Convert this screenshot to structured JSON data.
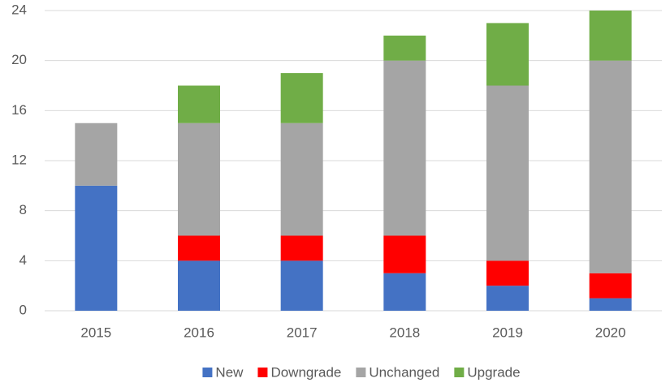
{
  "chart_data": {
    "type": "stacked_bar",
    "categories": [
      "2015",
      "2016",
      "2017",
      "2018",
      "2019",
      "2020"
    ],
    "series": [
      {
        "name": "New",
        "color": "#4472c4",
        "values": [
          10,
          4,
          4,
          3,
          2,
          1
        ]
      },
      {
        "name": "Downgrade",
        "color": "#ff0000",
        "values": [
          0,
          2,
          2,
          3,
          2,
          2
        ]
      },
      {
        "name": "Unchanged",
        "color": "#a5a5a5",
        "values": [
          5,
          9,
          9,
          14,
          14,
          17
        ]
      },
      {
        "name": "Upgrade",
        "color": "#70ad47",
        "values": [
          0,
          3,
          4,
          2,
          5,
          4
        ]
      }
    ],
    "ylim": [
      0,
      24
    ],
    "yticks": [
      0,
      4,
      8,
      12,
      16,
      20,
      24
    ],
    "grid": true,
    "legend": "bottom"
  }
}
